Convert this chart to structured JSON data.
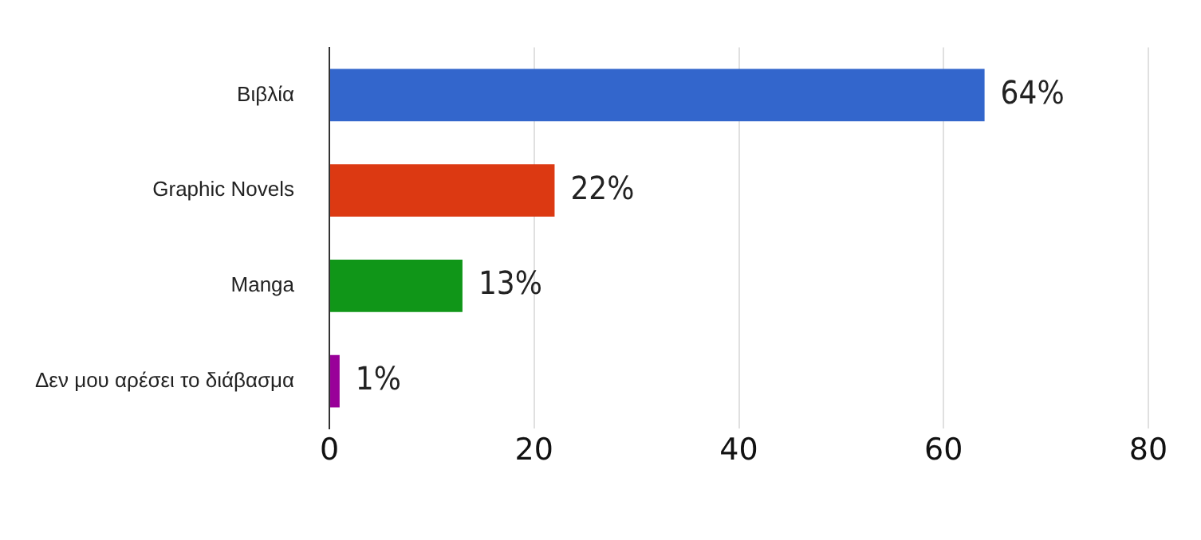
{
  "chart_data": {
    "type": "bar",
    "orientation": "horizontal",
    "categories": [
      "Βιβλία",
      "Graphic Novels",
      "Manga",
      "Δεν μου αρέσει το διάβασμα"
    ],
    "values": [
      64,
      22,
      13,
      1
    ],
    "colors": [
      "#3366cc",
      "#dc3912",
      "#109618",
      "#990099"
    ],
    "value_labels": [
      "64%",
      "22%",
      "13%",
      "1%"
    ],
    "xlim": [
      0,
      80
    ],
    "xticks": [
      0,
      20,
      40,
      60,
      80
    ],
    "grid": "x",
    "legend": false
  }
}
